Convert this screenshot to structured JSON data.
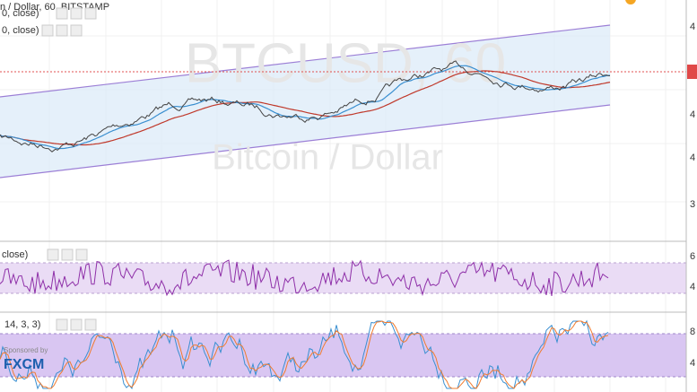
{
  "header": {
    "symbol": "n / Dollar, 60, BITSTAMP",
    "indicator_1": "0, close)",
    "indicator_2": "0, close)"
  },
  "watermark": {
    "ticker": "BTCUSD, 60",
    "name": "Bitcoin / Dollar"
  },
  "rsi": {
    "label": "close)"
  },
  "stoch": {
    "label": "14, 3, 3)"
  },
  "sponsor": {
    "line": "Sponsored by",
    "brand": "FXCM"
  },
  "axis": {
    "price": [
      "4",
      "4",
      "4",
      "3"
    ],
    "rsi": [
      "6",
      "4"
    ],
    "stoch": [
      "8",
      "4"
    ]
  }
}
